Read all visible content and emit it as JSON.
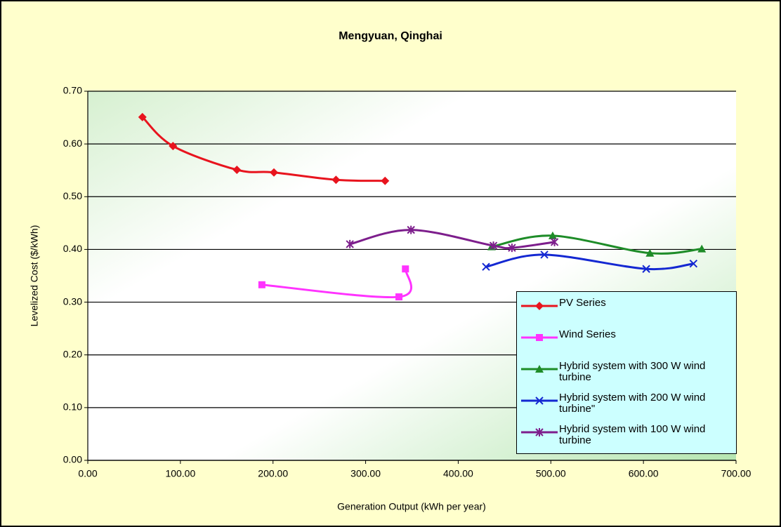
{
  "chart_data": {
    "type": "line",
    "title": "Mengyuan, Qinghai",
    "x_label": "Generation Output (kWh per year)",
    "y_label": "Levelized Cost ($/kWh)",
    "xlim": [
      0,
      700
    ],
    "ylim": [
      0,
      0.7
    ],
    "xticks": [
      {
        "value": 0,
        "label": "0.00"
      },
      {
        "value": 100,
        "label": "100.00"
      },
      {
        "value": 200,
        "label": "200.00"
      },
      {
        "value": 300,
        "label": "300.00"
      },
      {
        "value": 400,
        "label": "400.00"
      },
      {
        "value": 500,
        "label": "500.00"
      },
      {
        "value": 600,
        "label": "600.00"
      },
      {
        "value": 700,
        "label": "700.00"
      }
    ],
    "yticks": [
      {
        "value": 0,
        "label": "0.00"
      },
      {
        "value": 0.1,
        "label": "0.10"
      },
      {
        "value": 0.2,
        "label": "0.20"
      },
      {
        "value": 0.3,
        "label": "0.30"
      },
      {
        "value": 0.4,
        "label": "0.40"
      },
      {
        "value": 0.5,
        "label": "0.50"
      },
      {
        "value": 0.6,
        "label": "0.60"
      },
      {
        "value": 0.7,
        "label": "0.70"
      }
    ],
    "grid": true,
    "legend": "lower right",
    "series": [
      {
        "name": "PV Series",
        "color": "#e8141e",
        "marker": "diamond",
        "x": [
          59,
          92,
          161,
          201,
          268,
          321
        ],
        "values": [
          0.651,
          0.596,
          0.551,
          0.546,
          0.532,
          0.53
        ]
      },
      {
        "name": "Wind Series",
        "color": "#ff33ff",
        "marker": "square",
        "x": [
          188,
          336,
          343
        ],
        "values": [
          0.333,
          0.31,
          0.363
        ]
      },
      {
        "name": "Hybrid system with 300 W wind turbine",
        "color": "#1e8c28",
        "marker": "triangle",
        "x": [
          436,
          502,
          607,
          663
        ],
        "values": [
          0.405,
          0.426,
          0.393,
          0.401
        ]
      },
      {
        "name": "Hybrid system with 200 W wind turbine\"",
        "color": "#1428d2",
        "marker": "x",
        "x": [
          430,
          493,
          603,
          654
        ],
        "values": [
          0.367,
          0.39,
          0.363,
          0.373
        ]
      },
      {
        "name": "Hybrid system with 100 W wind turbine",
        "color": "#7d1e8c",
        "marker": "star",
        "x": [
          283,
          349,
          438,
          458,
          504
        ],
        "values": [
          0.41,
          0.437,
          0.407,
          0.403,
          0.414
        ]
      }
    ]
  }
}
